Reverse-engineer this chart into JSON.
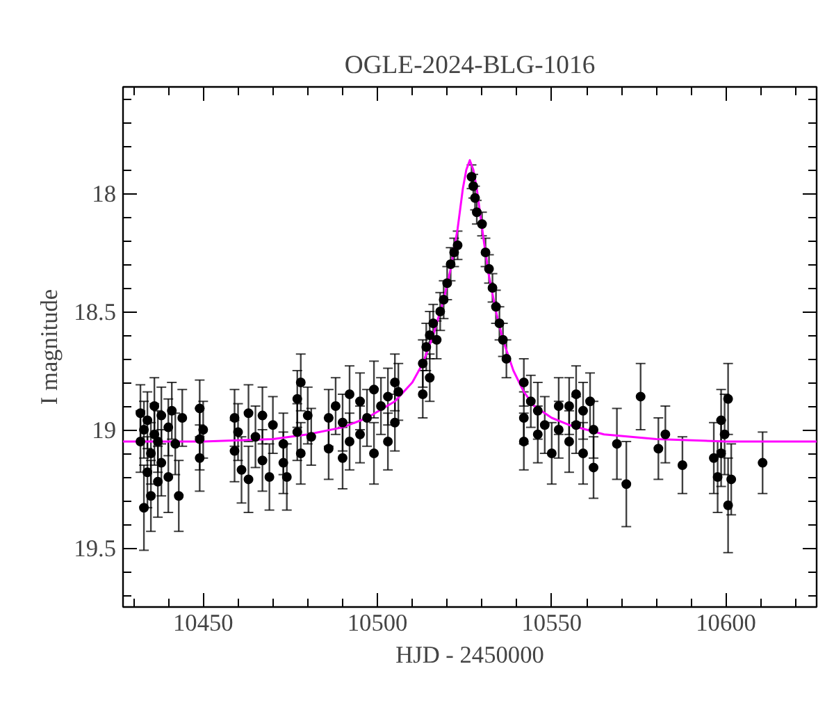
{
  "chart_data": {
    "type": "scatter",
    "title": "OGLE-2024-BLG-1016",
    "xlabel": "HJD - 2450000",
    "ylabel": "I magnitude",
    "xlim": [
      10427,
      10626
    ],
    "ylim": [
      19.75,
      17.55
    ],
    "xticks": [
      {
        "value": 10430,
        "label": null
      },
      {
        "value": 10440,
        "label": null
      },
      10450,
      {
        "value": 10460,
        "label": null
      },
      {
        "value": 10470,
        "label": null
      },
      {
        "value": 10480,
        "label": null
      },
      {
        "value": 10490,
        "label": null
      },
      10500,
      {
        "value": 10510,
        "label": null
      },
      {
        "value": 10520,
        "label": null
      },
      {
        "value": 10530,
        "label": null
      },
      {
        "value": 10540,
        "label": null
      },
      10550,
      {
        "value": 10560,
        "label": null
      },
      {
        "value": 10570,
        "label": null
      },
      {
        "value": 10580,
        "label": null
      },
      {
        "value": 10590,
        "label": null
      },
      10600,
      {
        "value": 10610,
        "label": null
      },
      {
        "value": 10620,
        "label": null
      }
    ],
    "yticks": [
      {
        "value": 17.6,
        "label": null
      },
      {
        "value": 17.7,
        "label": null
      },
      {
        "value": 17.8,
        "label": null
      },
      {
        "value": 17.9,
        "label": null
      },
      18,
      {
        "value": 18.1,
        "label": null
      },
      {
        "value": 18.2,
        "label": null
      },
      {
        "value": 18.3,
        "label": null
      },
      {
        "value": 18.4,
        "label": null
      },
      18.5,
      {
        "value": 18.6,
        "label": null
      },
      {
        "value": 18.7,
        "label": null
      },
      {
        "value": 18.8,
        "label": null
      },
      {
        "value": 18.9,
        "label": null
      },
      19,
      {
        "value": 19.1,
        "label": null
      },
      {
        "value": 19.2,
        "label": null
      },
      {
        "value": 19.3,
        "label": null
      },
      {
        "value": 19.4,
        "label": null
      },
      19.5,
      {
        "value": 19.6,
        "label": null
      },
      {
        "value": 19.7,
        "label": null
      }
    ],
    "grid": false,
    "series": [
      {
        "color": "#000000",
        "marker": "circle",
        "x": [
          10432,
          10432,
          10433,
          10433,
          10434,
          10434,
          10435,
          10435,
          10436,
          10436,
          10437,
          10437,
          10438,
          10438,
          10440,
          10440,
          10441,
          10442,
          10443,
          10444,
          10449,
          10449,
          10449,
          10450,
          10459,
          10459,
          10460,
          10461,
          10463,
          10463,
          10465,
          10467,
          10467,
          10469,
          10470,
          10473,
          10473,
          10474,
          10477,
          10477,
          10478,
          10478,
          10480,
          10481,
          10486,
          10486,
          10488,
          10490,
          10490,
          10492,
          10492,
          10495,
          10495,
          10497,
          10499,
          10499,
          10501,
          10503,
          10503,
          10505,
          10505,
          10506,
          10513,
          10513,
          10514,
          10515,
          10515,
          10516,
          10517,
          10518,
          10519,
          10520,
          10521,
          10522,
          10523,
          10527,
          10527.5,
          10528,
          10528.5,
          10530,
          10531,
          10532,
          10533,
          10534,
          10535,
          10536,
          10537,
          10542,
          10542,
          10542,
          10544,
          10546,
          10546,
          10548,
          10550,
          10552,
          10552,
          10555,
          10555,
          10557,
          10557,
          10559,
          10559,
          10561,
          10562,
          10562,
          10568.7,
          10571.4,
          10575.5,
          10580.6,
          10582.6,
          10587.5,
          10596.5,
          10597.6,
          10598.6,
          10598.6,
          10599.6,
          10600.6,
          10601.5,
          10600.6,
          10610.5
        ],
        "values": [
          18.93,
          19.05,
          19.0,
          19.33,
          18.96,
          19.18,
          19.1,
          19.28,
          18.9,
          19.02,
          19.05,
          19.22,
          18.94,
          19.14,
          18.99,
          19.2,
          18.92,
          19.06,
          19.28,
          18.95,
          18.91,
          19.04,
          19.12,
          19.0,
          18.95,
          19.09,
          19.01,
          19.17,
          18.93,
          19.21,
          19.03,
          18.94,
          19.13,
          19.2,
          18.98,
          19.06,
          19.14,
          19.2,
          18.87,
          19.01,
          18.8,
          19.1,
          18.94,
          19.03,
          18.95,
          19.08,
          18.9,
          18.97,
          19.12,
          18.85,
          19.05,
          18.88,
          19.02,
          18.95,
          18.83,
          19.1,
          18.9,
          18.86,
          19.05,
          18.8,
          18.97,
          18.84,
          18.72,
          18.85,
          18.65,
          18.78,
          18.6,
          18.55,
          18.62,
          18.5,
          18.45,
          18.38,
          18.3,
          18.25,
          18.22,
          17.93,
          17.97,
          18.02,
          18.08,
          18.13,
          18.25,
          18.32,
          18.4,
          18.48,
          18.55,
          18.62,
          18.7,
          18.8,
          18.95,
          19.05,
          18.88,
          19.02,
          18.92,
          18.98,
          19.1,
          18.9,
          19.0,
          18.9,
          19.05,
          18.85,
          18.98,
          18.92,
          19.1,
          18.88,
          19.0,
          19.16,
          19.06,
          19.23,
          18.86,
          19.08,
          19.02,
          19.15,
          19.12,
          19.2,
          19.1,
          18.96,
          19.02,
          18.87,
          19.21,
          19.32,
          19.14
        ],
        "errors": [
          0.12,
          0.13,
          0.12,
          0.18,
          0.12,
          0.15,
          0.13,
          0.15,
          0.12,
          0.13,
          0.13,
          0.15,
          0.12,
          0.14,
          0.12,
          0.15,
          0.12,
          0.13,
          0.15,
          0.12,
          0.12,
          0.13,
          0.14,
          0.12,
          0.12,
          0.13,
          0.12,
          0.14,
          0.12,
          0.14,
          0.13,
          0.12,
          0.13,
          0.14,
          0.12,
          0.13,
          0.13,
          0.14,
          0.12,
          0.12,
          0.12,
          0.13,
          0.12,
          0.12,
          0.12,
          0.13,
          0.12,
          0.12,
          0.13,
          0.12,
          0.12,
          0.12,
          0.12,
          0.12,
          0.12,
          0.13,
          0.12,
          0.12,
          0.12,
          0.12,
          0.12,
          0.12,
          0.1,
          0.1,
          0.1,
          0.1,
          0.1,
          0.08,
          0.08,
          0.08,
          0.08,
          0.07,
          0.07,
          0.06,
          0.06,
          0.05,
          0.05,
          0.05,
          0.05,
          0.05,
          0.06,
          0.06,
          0.06,
          0.07,
          0.07,
          0.07,
          0.08,
          0.1,
          0.11,
          0.12,
          0.11,
          0.12,
          0.12,
          0.12,
          0.13,
          0.12,
          0.12,
          0.12,
          0.13,
          0.12,
          0.12,
          0.12,
          0.13,
          0.12,
          0.12,
          0.13,
          0.15,
          0.18,
          0.14,
          0.13,
          0.12,
          0.12,
          0.15,
          0.15,
          0.14,
          0.13,
          0.17,
          0.15,
          0.15,
          0.2,
          0.13
        ]
      },
      {
        "type": "line",
        "color": "#ff00ff",
        "marker": "none",
        "line_style": "solid",
        "x": [
          10427,
          10450,
          10470,
          10480,
          10490,
          10497,
          10505,
          10510,
          10513,
          10516,
          10519,
          10521,
          10523,
          10524.5,
          10525.5,
          10526.5,
          10527.5,
          10528.5,
          10530.5,
          10532,
          10534,
          10536,
          10539,
          10542,
          10545,
          10550,
          10555,
          10565,
          10580,
          10600,
          10626
        ],
        "values": [
          19.05,
          19.05,
          19.04,
          19.02,
          18.99,
          18.95,
          18.88,
          18.8,
          18.72,
          18.6,
          18.45,
          18.32,
          18.15,
          17.98,
          17.9,
          17.86,
          17.9,
          17.98,
          18.2,
          18.35,
          18.5,
          18.62,
          18.75,
          18.84,
          18.9,
          18.95,
          18.98,
          19.02,
          19.04,
          19.05,
          19.05
        ]
      }
    ]
  }
}
